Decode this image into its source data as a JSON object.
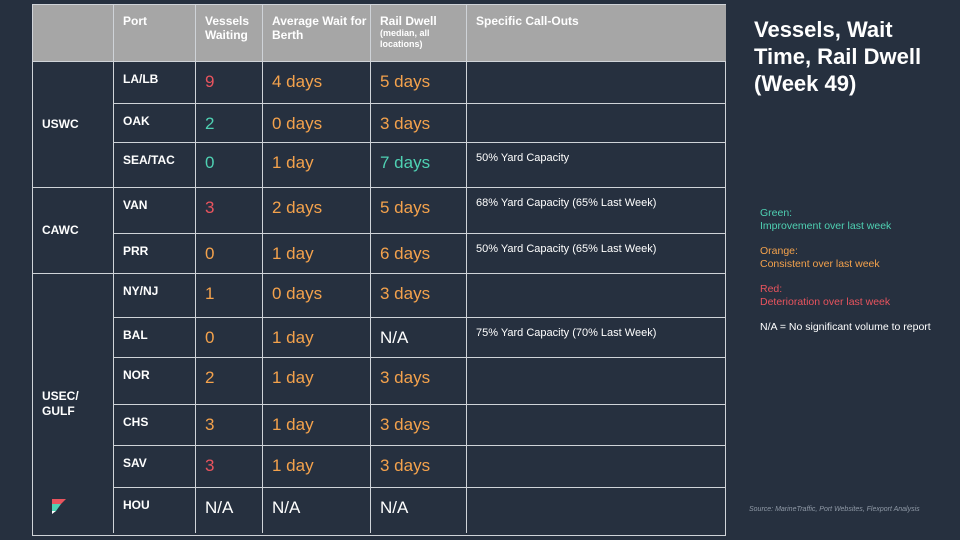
{
  "title": "Vessels, Wait Time, Rail Dwell (Week 49)",
  "headers": {
    "port": "Port",
    "vessels": "Vessels Waiting",
    "wait": "Average Wait for Berth",
    "rail": "Rail Dwell",
    "rail_sub": "(median, all locations)",
    "callouts": "Specific Call-Outs"
  },
  "regions": {
    "uswc": "USWC",
    "cawc": "CAWC",
    "usec": "USEC/ GULF"
  },
  "rows": [
    {
      "port": "LA/LB",
      "vessels": "9",
      "vessels_color": "red",
      "wait": "4 days",
      "wait_color": "orange",
      "rail": "5 days",
      "rail_color": "orange",
      "note": ""
    },
    {
      "port": "OAK",
      "vessels": "2",
      "vessels_color": "green",
      "wait": "0 days",
      "wait_color": "orange",
      "rail": "3 days",
      "rail_color": "orange",
      "note": ""
    },
    {
      "port": "SEA/TAC",
      "vessels": "0",
      "vessels_color": "green",
      "wait": "1 day",
      "wait_color": "orange",
      "rail": "7 days",
      "rail_color": "green",
      "note": "50% Yard Capacity"
    },
    {
      "port": "VAN",
      "vessels": "3",
      "vessels_color": "red",
      "wait": "2 days",
      "wait_color": "orange",
      "rail": "5 days",
      "rail_color": "orange",
      "note": "68% Yard Capacity (65% Last Week)"
    },
    {
      "port": "PRR",
      "vessels": "0",
      "vessels_color": "orange",
      "wait": "1 day",
      "wait_color": "orange",
      "rail": "6 days",
      "rail_color": "orange",
      "note": "50% Yard Capacity (65% Last Week)"
    },
    {
      "port": "NY/NJ",
      "vessels": "1",
      "vessels_color": "orange",
      "wait": "0 days",
      "wait_color": "orange",
      "rail": "3 days",
      "rail_color": "orange",
      "note": ""
    },
    {
      "port": "BAL",
      "vessels": "0",
      "vessels_color": "orange",
      "wait": "1 day",
      "wait_color": "orange",
      "rail": "N/A",
      "rail_color": "white",
      "note": "75% Yard Capacity (70% Last Week)"
    },
    {
      "port": "NOR",
      "vessels": "2",
      "vessels_color": "orange",
      "wait": "1 day",
      "wait_color": "orange",
      "rail": "3 days",
      "rail_color": "orange",
      "note": ""
    },
    {
      "port": "CHS",
      "vessels": "3",
      "vessels_color": "orange",
      "wait": "1 day",
      "wait_color": "orange",
      "rail": "3 days",
      "rail_color": "orange",
      "note": ""
    },
    {
      "port": "SAV",
      "vessels": "3",
      "vessels_color": "red",
      "wait": "1 day",
      "wait_color": "orange",
      "rail": "3 days",
      "rail_color": "orange",
      "note": ""
    },
    {
      "port": "HOU",
      "vessels": "N/A",
      "vessels_color": "white",
      "wait": "N/A",
      "wait_color": "white",
      "rail": "N/A",
      "rail_color": "white",
      "note": ""
    }
  ],
  "legend": {
    "green_label": "Green:",
    "green_text": "Improvement over last week",
    "orange_label": "Orange:",
    "orange_text": "Consistent over last week",
    "red_label": "Red:",
    "red_text": "Deterioration over last week",
    "na_text": "N/A = No significant volume to report"
  },
  "colors": {
    "green": "#4fd1b3",
    "orange": "#f4a24c",
    "red": "#e9545e",
    "background": "#26303f",
    "header": "#a6a6a6"
  },
  "source": "Source: MarineTraffic, Port Websites, Flexport Analysis",
  "logo_icon": "flexport-logo-icon"
}
